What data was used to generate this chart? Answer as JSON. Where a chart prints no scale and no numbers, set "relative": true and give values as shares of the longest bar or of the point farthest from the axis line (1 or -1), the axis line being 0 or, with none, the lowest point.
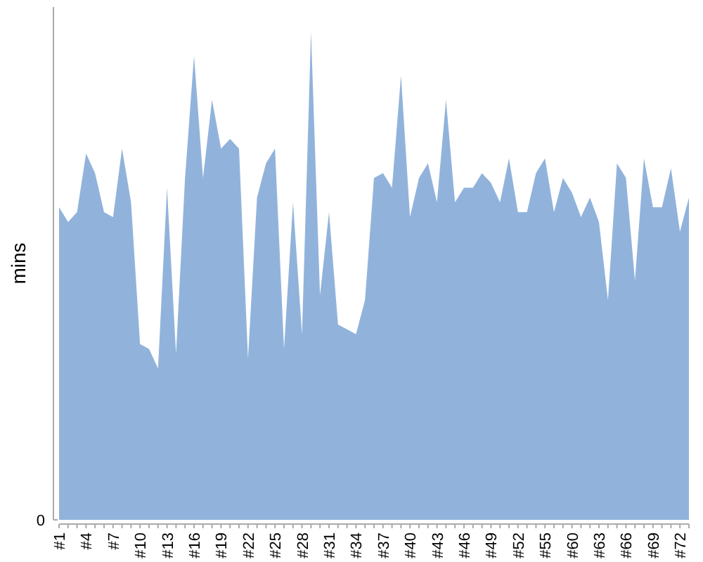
{
  "chart_data": {
    "type": "area",
    "ylabel": "mins",
    "relative": true,
    "color": "#91b3db",
    "annotations": [
      "0"
    ],
    "categories": [
      "#1",
      null,
      null,
      "#4",
      null,
      null,
      "#7",
      null,
      null,
      "#10",
      null,
      null,
      "#13",
      null,
      null,
      "#16",
      null,
      null,
      "#19",
      null,
      null,
      "#22",
      null,
      null,
      "#25",
      null,
      null,
      "#28",
      null,
      null,
      "#31",
      null,
      null,
      "#34",
      null,
      null,
      "#37",
      null,
      null,
      "#40",
      null,
      null,
      "#43",
      null,
      null,
      "#46",
      null,
      null,
      "#49",
      null,
      null,
      "#52",
      null,
      null,
      "#55",
      null,
      null,
      "#60",
      null,
      null,
      "#63",
      null,
      null,
      "#66",
      null,
      null,
      "#69",
      null,
      null,
      "#72",
      null
    ],
    "values": [
      0.64,
      0.61,
      0.63,
      0.75,
      0.71,
      0.63,
      0.62,
      0.76,
      0.65,
      0.36,
      0.35,
      0.31,
      0.68,
      0.34,
      0.7,
      0.95,
      0.7,
      0.86,
      0.76,
      0.78,
      0.76,
      0.33,
      0.66,
      0.73,
      0.76,
      0.35,
      0.65,
      0.38,
      1,
      0.46,
      0.63,
      0.4,
      0.39,
      0.38,
      0.45,
      0.7,
      0.71,
      0.68,
      0.91,
      0.62,
      0.7,
      0.73,
      0.65,
      0.86,
      0.65,
      0.68,
      0.68,
      0.71,
      0.69,
      0.65,
      0.74,
      0.63,
      0.63,
      0.71,
      0.74,
      0.63,
      0.7,
      0.67,
      0.62,
      0.66,
      0.61,
      0.45,
      0.73,
      0.7,
      0.49,
      0.74,
      0.64,
      0.64,
      0.72,
      0.59,
      0.66
    ]
  }
}
